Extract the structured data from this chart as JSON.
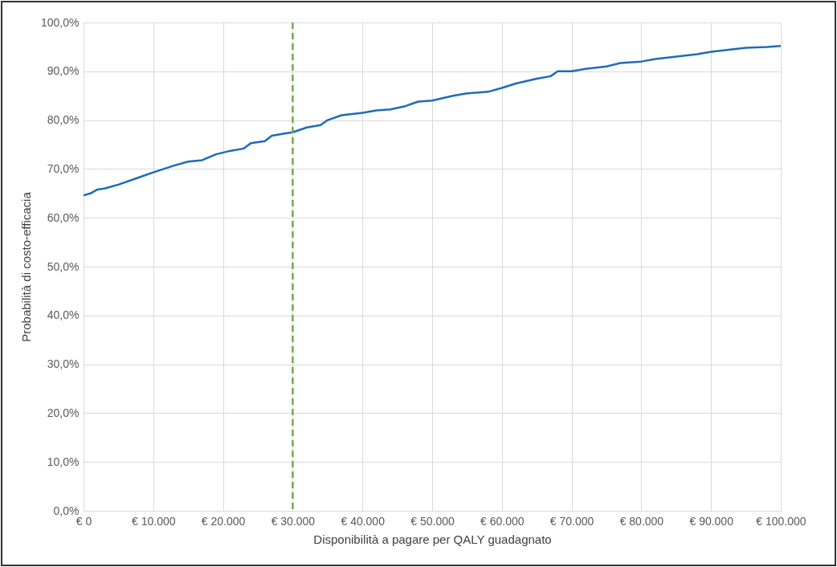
{
  "chart_data": {
    "type": "line",
    "xlabel": "Disponibilità a pagare per QALY guadagnato",
    "ylabel": "Probabilità di costo-efficacia",
    "x": [
      0,
      1000,
      2000,
      3000,
      5000,
      8000,
      10000,
      13000,
      15000,
      17000,
      19000,
      21000,
      23000,
      24000,
      26000,
      27000,
      29000,
      30000,
      32000,
      34000,
      35000,
      37000,
      40000,
      42000,
      44000,
      46000,
      48000,
      50000,
      53000,
      55000,
      58000,
      60000,
      62000,
      65000,
      67000,
      68000,
      70000,
      72000,
      75000,
      77000,
      80000,
      82000,
      85000,
      88000,
      90000,
      93000,
      95000,
      98000,
      100000
    ],
    "series": [
      {
        "color": "#1f6bb8",
        "values": [
          64.6,
          65.0,
          65.8,
          66.0,
          66.8,
          68.3,
          69.3,
          70.7,
          71.5,
          71.8,
          73.0,
          73.7,
          74.2,
          75.3,
          75.7,
          76.8,
          77.3,
          77.5,
          78.5,
          79.0,
          80.0,
          81.0,
          81.5,
          82.0,
          82.2,
          82.8,
          83.8,
          84.0,
          85.0,
          85.5,
          85.8,
          86.6,
          87.5,
          88.5,
          89.0,
          90.0,
          90.0,
          90.5,
          91.0,
          91.7,
          92.0,
          92.5,
          93.0,
          93.5,
          94.0,
          94.5,
          94.8,
          95.0,
          95.2
        ]
      }
    ],
    "xlim": [
      0,
      100000
    ],
    "ylim": [
      0,
      100
    ],
    "xticks": [
      {
        "value": 0,
        "label": "€ 0"
      },
      {
        "value": 10000,
        "label": "€ 10.000"
      },
      {
        "value": 20000,
        "label": "€ 20.000"
      },
      {
        "value": 30000,
        "label": "€ 30.000"
      },
      {
        "value": 40000,
        "label": "€ 40.000"
      },
      {
        "value": 50000,
        "label": "€ 50.000"
      },
      {
        "value": 60000,
        "label": "€ 60.000"
      },
      {
        "value": 70000,
        "label": "€ 70.000"
      },
      {
        "value": 80000,
        "label": "€ 80.000"
      },
      {
        "value": 90000,
        "label": "€ 90.000"
      },
      {
        "value": 100000,
        "label": "€ 100.000"
      }
    ],
    "yticks": [
      {
        "value": 0,
        "label": "0,0%"
      },
      {
        "value": 10,
        "label": "10,0%"
      },
      {
        "value": 20,
        "label": "20,0%"
      },
      {
        "value": 30,
        "label": "30,0%"
      },
      {
        "value": 40,
        "label": "40,0%"
      },
      {
        "value": 50,
        "label": "50,0%"
      },
      {
        "value": 60,
        "label": "60,0%"
      },
      {
        "value": 70,
        "label": "70,0%"
      },
      {
        "value": 80,
        "label": "80,0%"
      },
      {
        "value": 90,
        "label": "90,0%"
      },
      {
        "value": 100,
        "label": "100,0%"
      }
    ],
    "grid": true,
    "ref_lines": [
      {
        "axis": "x",
        "value": 30000,
        "color": "#70ad47",
        "line_style": "dashed"
      }
    ]
  }
}
